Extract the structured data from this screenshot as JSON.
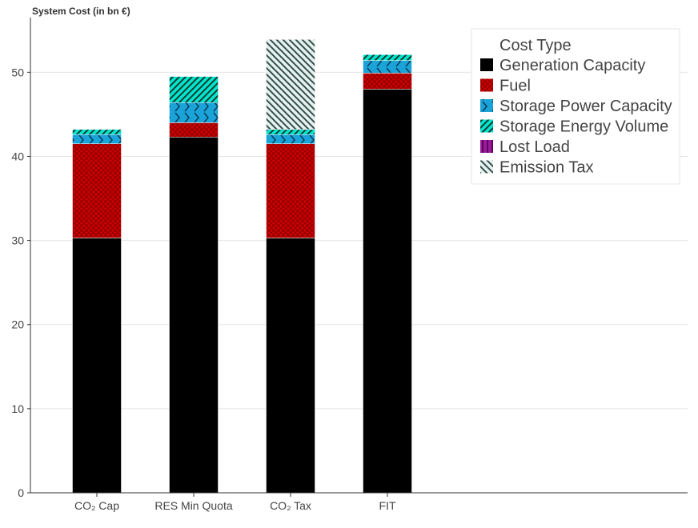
{
  "chart_data": {
    "type": "bar",
    "stacked": true,
    "ylabel": "System Cost (in bn €)",
    "xlabel": "",
    "ylim": [
      0,
      56.5
    ],
    "yticks": [
      0,
      10,
      20,
      30,
      40,
      50
    ],
    "grid": true,
    "categories": [
      "CO₂ Cap",
      "RES Min Quota",
      "CO₂ Tax",
      "FIT"
    ],
    "legend": {
      "title": "Cost Type",
      "placement": "top-right"
    },
    "series": [
      {
        "name": "Generation Capacity",
        "color": "#000000",
        "pattern": "solid",
        "values": [
          30.3,
          42.3,
          30.3,
          48.0
        ]
      },
      {
        "name": "Fuel",
        "color": "#cc0000",
        "pattern": "crosshatch",
        "values": [
          11.2,
          1.7,
          11.2,
          1.9
        ]
      },
      {
        "name": "Storage Power Capacity",
        "color": "#1aa3d9",
        "pattern": "zigzag",
        "values": [
          1.1,
          2.4,
          1.1,
          1.5
        ]
      },
      {
        "name": "Storage Energy Volume",
        "color": "#00e5cc",
        "pattern": "diagonal",
        "values": [
          0.6,
          3.1,
          0.6,
          0.7
        ]
      },
      {
        "name": "Lost Load",
        "color": "#9b1a9b",
        "pattern": "vertical",
        "values": [
          0,
          0,
          0,
          0
        ]
      },
      {
        "name": "Emission Tax",
        "color": "#2f4f4f",
        "pattern": "backdiagonal",
        "values": [
          0,
          0,
          10.7,
          0
        ]
      }
    ]
  }
}
